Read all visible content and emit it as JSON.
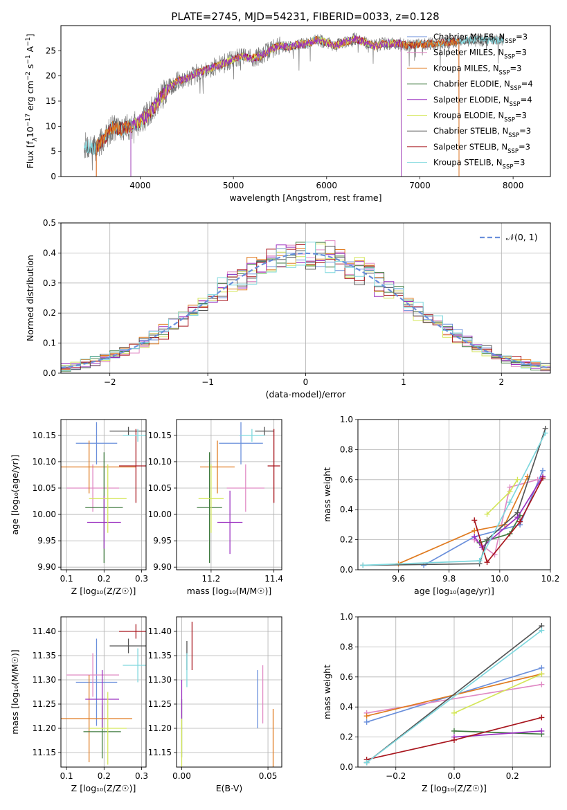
{
  "title": "PLATE=2745, MJD=54231, FIBERID=0033, z=0.128",
  "colors": {
    "chabrier_miles": "#6a8fdb",
    "salpeter_miles": "#e08ac4",
    "kroupa_miles": "#e07b20",
    "chabrier_elodie": "#3f7a3f",
    "salpeter_elodie": "#9b30c0",
    "kroupa_elodie": "#d4e65a",
    "chabrier_stelib": "#555555",
    "salpeter_stelib": "#a8161e",
    "kroupa_stelib": "#7fd8de"
  },
  "chart_data": [
    {
      "id": "spectrum",
      "type": "line",
      "title": "PLATE=2745, MJD=54231, FIBERID=0033, z=0.128",
      "xlabel": "wavelength [Angstrom, rest frame]",
      "ylabel_parts": [
        "Flux [f",
        "λ",
        "10",
        "−17",
        " erg cm",
        "−2",
        " s",
        "−1",
        " A",
        "−1",
        "]"
      ],
      "xlim": [
        3150,
        8400
      ],
      "ylim": [
        0,
        30
      ],
      "xticks": [
        "4000",
        "5000",
        "6000",
        "7000",
        "8000"
      ],
      "yticks": [
        "0",
        "5",
        "10",
        "15",
        "20",
        "25"
      ],
      "continuum": [
        [
          3400,
          6.2
        ],
        [
          3520,
          5.6
        ],
        [
          3600,
          7.2
        ],
        [
          3700,
          9.8
        ],
        [
          3800,
          9.5
        ],
        [
          3900,
          10.0
        ],
        [
          4000,
          11.0
        ],
        [
          4100,
          12.5
        ],
        [
          4200,
          15.2
        ],
        [
          4300,
          17.5
        ],
        [
          4400,
          19.0
        ],
        [
          4500,
          19.5
        ],
        [
          4600,
          20.5
        ],
        [
          4700,
          21.2
        ],
        [
          4800,
          21.8
        ],
        [
          4900,
          22.5
        ],
        [
          5000,
          23.4
        ],
        [
          5100,
          23.8
        ],
        [
          5200,
          23.5
        ],
        [
          5300,
          24.0
        ],
        [
          5400,
          25.3
        ],
        [
          5500,
          26.0
        ],
        [
          5600,
          25.8
        ],
        [
          5700,
          26.2
        ],
        [
          5800,
          26.5
        ],
        [
          5900,
          27.2
        ],
        [
          6000,
          26.6
        ],
        [
          6100,
          26.0
        ],
        [
          6200,
          26.8
        ],
        [
          6300,
          27.4
        ],
        [
          6400,
          26.8
        ],
        [
          6500,
          25.9
        ],
        [
          6600,
          26.4
        ],
        [
          6700,
          26.5
        ],
        [
          6800,
          26.4
        ],
        [
          6900,
          26.0
        ],
        [
          7000,
          26.3
        ],
        [
          7200,
          26.5
        ],
        [
          7400,
          26.9
        ],
        [
          7600,
          27.2
        ],
        [
          7800,
          27.1
        ],
        [
          7900,
          27.0
        ]
      ],
      "legend": [
        {
          "key": "chabrier_miles",
          "name": "Chabrier MILES, N",
          "sub": "SSP",
          "tail": "=3"
        },
        {
          "key": "salpeter_miles",
          "name": "Salpeter MILES, N",
          "sub": "SSP",
          "tail": "=3"
        },
        {
          "key": "kroupa_miles",
          "name": "Kroupa MILES, N",
          "sub": "SSP",
          "tail": "=3"
        },
        {
          "key": "chabrier_elodie",
          "name": "Chabrier ELODIE, N",
          "sub": "SSP",
          "tail": "=4"
        },
        {
          "key": "salpeter_elodie",
          "name": "Salpeter ELODIE, N",
          "sub": "SSP",
          "tail": "=4"
        },
        {
          "key": "kroupa_elodie",
          "name": "Kroupa ELODIE, N",
          "sub": "SSP",
          "tail": "=3"
        },
        {
          "key": "chabrier_stelib",
          "name": "Chabrier STELIB, N",
          "sub": "SSP",
          "tail": "=3"
        },
        {
          "key": "salpeter_stelib",
          "name": "Salpeter STELIB, N",
          "sub": "SSP",
          "tail": "=3"
        },
        {
          "key": "kroupa_stelib",
          "name": "Kroupa STELIB, N",
          "sub": "SSP",
          "tail": "=3"
        }
      ],
      "models": [
        {
          "key": "chabrier_stelib",
          "range": [
            3400,
            7900
          ]
        },
        {
          "key": "kroupa_stelib",
          "range": [
            3400,
            7900
          ]
        },
        {
          "key": "salpeter_stelib",
          "range": [
            3530,
            7420
          ]
        },
        {
          "key": "kroupa_miles",
          "range": [
            3530,
            7420
          ]
        },
        {
          "key": "kroupa_elodie",
          "range": [
            3900,
            6800
          ]
        },
        {
          "key": "salpeter_elodie",
          "range": [
            3900,
            6800
          ]
        }
      ]
    },
    {
      "id": "residuals",
      "type": "histogram",
      "xlabel": "(data-model)/error",
      "ylabel": "Normed distribution",
      "xlim": [
        -2.5,
        2.5
      ],
      "ylim": [
        0,
        0.5
      ],
      "xticks": [
        "−2",
        "−1",
        "0",
        "1",
        "2"
      ],
      "yticks": [
        "0.0",
        "0.1",
        "0.2",
        "0.3",
        "0.4",
        "0.5"
      ],
      "bin_width": 0.1,
      "legend": "𝒩(0, 1)",
      "normal_color": "#6a8fdb",
      "series": [
        "chabrier_miles",
        "salpeter_miles",
        "kroupa_miles",
        "chabrier_elodie",
        "salpeter_elodie",
        "kroupa_elodie",
        "chabrier_stelib",
        "salpeter_stelib",
        "kroupa_stelib"
      ]
    },
    {
      "id": "age_vs_Z",
      "type": "errorbar",
      "xlabel": "Z [log₁₀(Z/Z☉)]",
      "ylabel": "age  [log₁₀(age/yr)]",
      "xlim": [
        0.085,
        0.312
      ],
      "ylim": [
        9.895,
        10.18
      ],
      "xticks": [
        0.1,
        0.2,
        0.3
      ],
      "yticks": [
        9.9,
        9.95,
        10.0,
        10.05,
        10.1,
        10.15
      ],
      "points": [
        {
          "key": "chabrier_miles",
          "x": 0.18,
          "xerr": 0.055,
          "y": 10.135,
          "yerr": 0.04
        },
        {
          "key": "salpeter_miles",
          "x": 0.17,
          "xerr": 0.07,
          "y": 10.05,
          "yerr": 0.045
        },
        {
          "key": "kroupa_miles",
          "x": 0.16,
          "xerr": 0.125,
          "y": 10.09,
          "yerr": 0.05
        },
        {
          "key": "chabrier_elodie",
          "x": 0.2,
          "xerr": 0.05,
          "y": 10.013,
          "yerr": 0.105
        },
        {
          "key": "salpeter_elodie",
          "x": 0.2,
          "xerr": 0.045,
          "y": 9.985,
          "yerr": 0.05
        },
        {
          "key": "kroupa_elodie",
          "x": 0.21,
          "xerr": 0.05,
          "y": 10.03,
          "yerr": 0.065
        },
        {
          "key": "chabrier_stelib",
          "x": 0.265,
          "xerr": 0.05,
          "y": 10.158,
          "yerr": 0.008
        },
        {
          "key": "salpeter_stelib",
          "x": 0.285,
          "xerr": 0.045,
          "y": 10.092,
          "yerr": 0.07
        },
        {
          "key": "kroupa_stelib",
          "x": 0.29,
          "xerr": 0.04,
          "y": 10.15,
          "yerr": 0.012
        }
      ]
    },
    {
      "id": "age_vs_mass",
      "type": "errorbar",
      "xlabel": "mass [log₁₀(M/M☉)]",
      "ylabel": "",
      "xlim": [
        11.09,
        11.425
      ],
      "ylim": [
        9.895,
        10.18
      ],
      "xticks": [
        11.2,
        11.4
      ],
      "yticks": [
        9.9,
        9.95,
        10.0,
        10.05,
        10.1,
        10.15
      ],
      "points": [
        {
          "key": "chabrier_miles",
          "x": 11.295,
          "xerr": 0.07,
          "y": 10.135,
          "yerr": 0.04
        },
        {
          "key": "salpeter_miles",
          "x": 11.31,
          "xerr": 0.06,
          "y": 10.05,
          "yerr": 0.045
        },
        {
          "key": "kroupa_miles",
          "x": 11.22,
          "xerr": 0.055,
          "y": 10.09,
          "yerr": 0.05
        },
        {
          "key": "chabrier_elodie",
          "x": 11.195,
          "xerr": 0.04,
          "y": 10.013,
          "yerr": 0.105
        },
        {
          "key": "salpeter_elodie",
          "x": 11.26,
          "xerr": 0.04,
          "y": 9.985,
          "yerr": 0.06
        },
        {
          "key": "kroupa_elodie",
          "x": 11.2,
          "xerr": 0.04,
          "y": 10.03,
          "yerr": 0.065
        },
        {
          "key": "chabrier_stelib",
          "x": 11.37,
          "xerr": 0.03,
          "y": 10.158,
          "yerr": 0.008
        },
        {
          "key": "salpeter_stelib",
          "x": 11.4,
          "xerr": 0.02,
          "y": 10.092,
          "yerr": 0.07
        },
        {
          "key": "kroupa_stelib",
          "x": 11.33,
          "xerr": 0.04,
          "y": 10.15,
          "yerr": 0.012
        }
      ]
    },
    {
      "id": "weight_vs_age",
      "type": "line",
      "xlabel": "age  [log₁₀(age/yr)]",
      "ylabel": "mass weight",
      "xlim": [
        9.44,
        10.2
      ],
      "ylim": [
        0,
        1
      ],
      "xticks": [
        9.6,
        9.8,
        10.0,
        10.2
      ],
      "yticks": [
        0.0,
        0.2,
        0.4,
        0.6,
        0.8,
        1.0
      ],
      "series": [
        {
          "key": "chabrier_miles",
          "points": [
            [
              9.7,
              0.03
            ],
            [
              9.9,
              0.22
            ],
            [
              10.08,
              0.3
            ],
            [
              10.17,
              0.66
            ]
          ]
        },
        {
          "key": "salpeter_miles",
          "points": [
            [
              9.9,
              0.2
            ],
            [
              9.98,
              0.1
            ],
            [
              10.04,
              0.55
            ],
            [
              10.15,
              0.6
            ]
          ]
        },
        {
          "key": "kroupa_miles",
          "points": [
            [
              9.6,
              0.04
            ],
            [
              9.9,
              0.26
            ],
            [
              10.02,
              0.3
            ],
            [
              10.11,
              0.62
            ]
          ]
        },
        {
          "key": "chabrier_elodie",
          "points": [
            [
              9.92,
              0.18
            ],
            [
              10.04,
              0.24
            ],
            [
              10.08,
              0.36
            ]
          ]
        },
        {
          "key": "salpeter_elodie",
          "points": [
            [
              9.9,
              0.22
            ],
            [
              9.93,
              0.15
            ],
            [
              10.07,
              0.35
            ],
            [
              10.17,
              0.62
            ]
          ]
        },
        {
          "key": "kroupa_elodie",
          "points": [
            [
              9.95,
              0.37
            ],
            [
              10.04,
              0.52
            ],
            [
              10.07,
              0.6
            ]
          ]
        },
        {
          "key": "chabrier_stelib",
          "points": [
            [
              9.46,
              0.03
            ],
            [
              9.92,
              0.04
            ],
            [
              9.95,
              0.2
            ],
            [
              10.07,
              0.38
            ],
            [
              10.18,
              0.94
            ]
          ]
        },
        {
          "key": "salpeter_stelib",
          "points": [
            [
              9.9,
              0.33
            ],
            [
              9.95,
              0.05
            ],
            [
              10.08,
              0.32
            ],
            [
              10.17,
              0.61
            ]
          ]
        },
        {
          "key": "kroupa_stelib",
          "points": [
            [
              9.46,
              0.03
            ],
            [
              9.92,
              0.06
            ],
            [
              10.04,
              0.45
            ],
            [
              10.18,
              0.91
            ]
          ]
        }
      ]
    },
    {
      "id": "mass_vs_Z",
      "type": "errorbar",
      "xlabel": "Z [log₁₀(Z/Z☉)]",
      "ylabel": "mass [log₁₀(M/M☉)]",
      "xlim": [
        0.085,
        0.312
      ],
      "ylim": [
        11.12,
        11.43
      ],
      "xticks": [
        0.1,
        0.2,
        0.3
      ],
      "yticks": [
        11.15,
        11.2,
        11.25,
        11.3,
        11.35,
        11.4
      ],
      "points": [
        {
          "key": "chabrier_miles",
          "x": 0.18,
          "xerr": 0.055,
          "y": 11.295,
          "yerr": 0.09
        },
        {
          "key": "salpeter_miles",
          "x": 0.17,
          "xerr": 0.07,
          "y": 11.31,
          "yerr": 0.045
        },
        {
          "key": "kroupa_miles",
          "x": 0.16,
          "xerr": 0.115,
          "y": 11.22,
          "yerr": 0.09
        },
        {
          "key": "chabrier_elodie",
          "x": 0.195,
          "xerr": 0.05,
          "y": 11.193,
          "yerr": 0.055
        },
        {
          "key": "salpeter_elodie",
          "x": 0.195,
          "xerr": 0.045,
          "y": 11.26,
          "yerr": 0.06
        },
        {
          "key": "kroupa_elodie",
          "x": 0.21,
          "xerr": 0.05,
          "y": 11.2,
          "yerr": 0.075
        },
        {
          "key": "chabrier_stelib",
          "x": 0.265,
          "xerr": 0.05,
          "y": 11.37,
          "yerr": 0.015
        },
        {
          "key": "salpeter_stelib",
          "x": 0.285,
          "xerr": 0.045,
          "y": 11.4,
          "yerr": 0.015
        },
        {
          "key": "kroupa_stelib",
          "x": 0.29,
          "xerr": 0.04,
          "y": 11.33,
          "yerr": 0.035
        }
      ]
    },
    {
      "id": "mass_vs_ebv",
      "type": "errorbar",
      "xlabel": "E(B-V)",
      "ylabel": "",
      "xlim": [
        -0.003,
        0.058
      ],
      "ylim": [
        11.12,
        11.43
      ],
      "xticks": [
        0.0,
        0.05
      ],
      "yticks": [
        11.15,
        11.2,
        11.25,
        11.3,
        11.35,
        11.4
      ],
      "points": [
        {
          "key": "chabrier_miles",
          "x": 0.044,
          "xerr": 0,
          "y": 11.26,
          "yerr": 0.06
        },
        {
          "key": "salpeter_miles",
          "x": 0.047,
          "xerr": 0,
          "y": 11.27,
          "yerr": 0.06
        },
        {
          "key": "kroupa_miles",
          "x": 0.053,
          "xerr": 0,
          "y": 11.18,
          "yerr": 0.06
        },
        {
          "key": "chabrier_elodie",
          "x": 0.0,
          "xerr": 0,
          "y": 11.2,
          "yerr": 0.06
        },
        {
          "key": "salpeter_elodie",
          "x": 0.0,
          "xerr": 0,
          "y": 11.26,
          "yerr": 0.04
        },
        {
          "key": "kroupa_elodie",
          "x": 0.0,
          "xerr": 0,
          "y": 11.16,
          "yerr": 0.06
        },
        {
          "key": "chabrier_stelib",
          "x": 0.003,
          "xerr": 0,
          "y": 11.35,
          "yerr": 0.03
        },
        {
          "key": "salpeter_stelib",
          "x": 0.006,
          "xerr": 0,
          "y": 11.37,
          "yerr": 0.05
        },
        {
          "key": "kroupa_stelib",
          "x": 0.003,
          "xerr": 0,
          "y": 11.32,
          "yerr": 0.035
        }
      ]
    },
    {
      "id": "weight_vs_Z",
      "type": "line",
      "xlabel": "Z [log₁₀(Z/Z☉)]",
      "ylabel": "mass weight",
      "xlim": [
        -0.33,
        0.33
      ],
      "ylim": [
        0,
        1
      ],
      "xticks": [
        -0.2,
        0.0,
        0.2
      ],
      "yticks": [
        0.0,
        0.2,
        0.4,
        0.6,
        0.8,
        1.0
      ],
      "series": [
        {
          "key": "chabrier_miles",
          "points": [
            [
              -0.3,
              0.3
            ],
            [
              0.3,
              0.66
            ]
          ]
        },
        {
          "key": "salpeter_miles",
          "points": [
            [
              -0.3,
              0.36
            ],
            [
              0.3,
              0.55
            ]
          ]
        },
        {
          "key": "kroupa_miles",
          "points": [
            [
              -0.3,
              0.34
            ],
            [
              0.3,
              0.62
            ]
          ]
        },
        {
          "key": "chabrier_elodie",
          "points": [
            [
              0.0,
              0.24
            ],
            [
              0.3,
              0.22
            ]
          ]
        },
        {
          "key": "salpeter_elodie",
          "points": [
            [
              0.0,
              0.2
            ],
            [
              0.3,
              0.24
            ]
          ]
        },
        {
          "key": "kroupa_elodie",
          "points": [
            [
              0.0,
              0.36
            ],
            [
              0.3,
              0.62
            ]
          ]
        },
        {
          "key": "chabrier_stelib",
          "points": [
            [
              -0.3,
              0.03
            ],
            [
              0.3,
              0.94
            ]
          ]
        },
        {
          "key": "salpeter_stelib",
          "points": [
            [
              -0.3,
              0.05
            ],
            [
              0.0,
              0.18
            ],
            [
              0.3,
              0.33
            ]
          ]
        },
        {
          "key": "kroupa_stelib",
          "points": [
            [
              -0.3,
              0.03
            ],
            [
              0.3,
              0.91
            ]
          ]
        }
      ]
    }
  ]
}
